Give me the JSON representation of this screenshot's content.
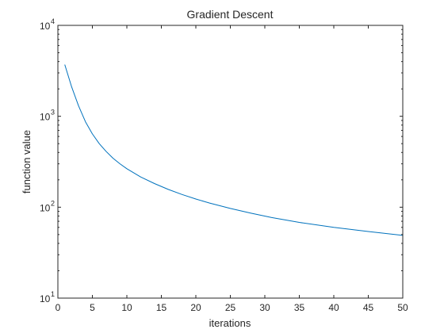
{
  "chart_data": {
    "type": "line",
    "title": "Gradient Descent",
    "xlabel": "iterations",
    "ylabel": "function value",
    "xlim": [
      0,
      50
    ],
    "ylim": [
      10,
      10000
    ],
    "yscale": "log",
    "xticks": [
      0,
      5,
      10,
      15,
      20,
      25,
      30,
      35,
      40,
      45,
      50
    ],
    "yticks": [
      {
        "value": 10,
        "base": "10",
        "exponent": "1"
      },
      {
        "value": 100,
        "base": "10",
        "exponent": "2"
      },
      {
        "value": 1000,
        "base": "10",
        "exponent": "3"
      },
      {
        "value": 10000,
        "base": "10",
        "exponent": "4"
      }
    ],
    "grid": false,
    "series": [
      {
        "color": "#0072bd",
        "x": [
          1,
          2,
          3,
          4,
          5,
          6,
          7,
          8,
          9,
          10,
          12,
          14,
          16,
          18,
          20,
          22,
          25,
          28,
          31,
          35,
          40,
          45,
          50
        ],
        "y": [
          3700,
          2100,
          1300,
          870,
          640,
          500,
          410,
          345,
          300,
          265,
          215,
          182,
          157,
          138,
          123,
          111,
          97,
          86,
          77,
          68,
          60,
          54,
          49
        ]
      }
    ]
  }
}
